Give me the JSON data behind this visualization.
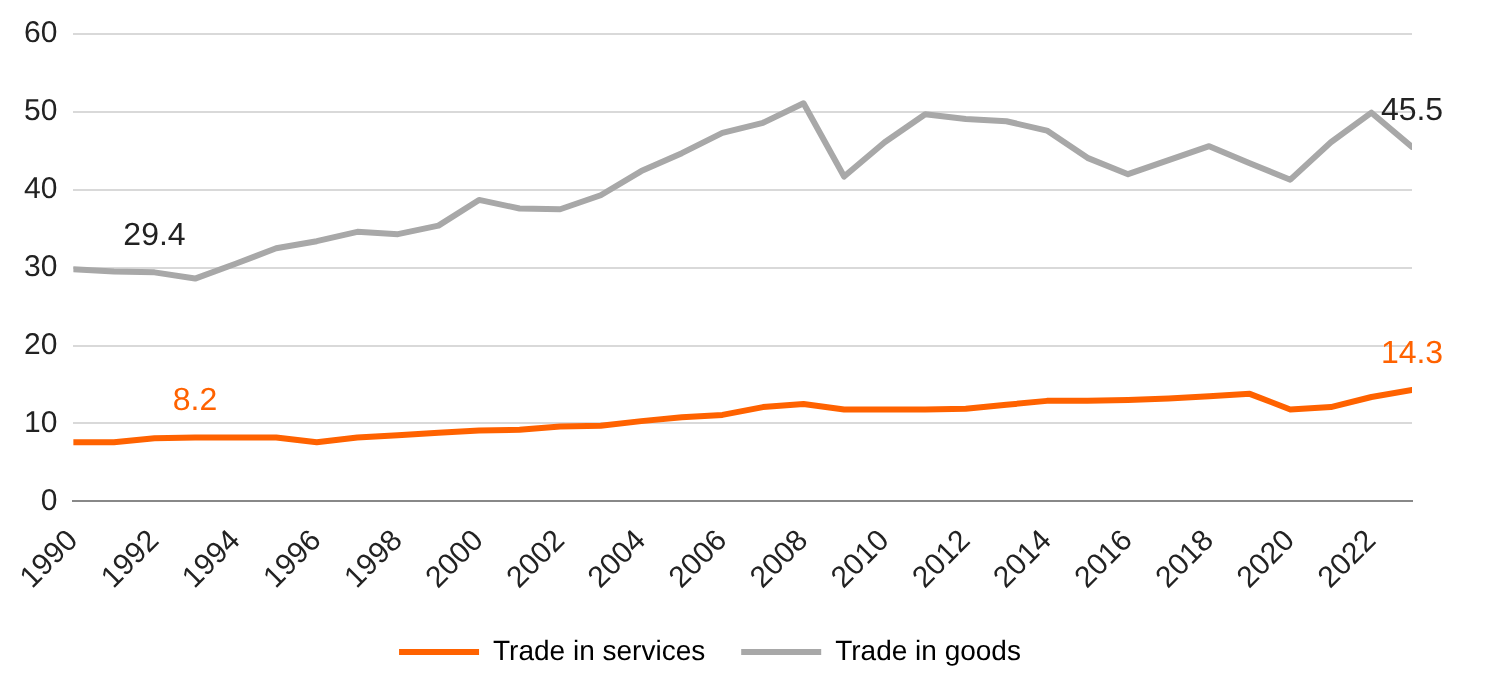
{
  "chart_data": {
    "type": "line",
    "x": [
      1990,
      1991,
      1992,
      1993,
      1994,
      1995,
      1996,
      1997,
      1998,
      1999,
      2000,
      2001,
      2002,
      2003,
      2004,
      2005,
      2006,
      2007,
      2008,
      2009,
      2010,
      2011,
      2012,
      2013,
      2014,
      2015,
      2016,
      2017,
      2018,
      2019,
      2020,
      2021,
      2022,
      2023
    ],
    "series": [
      {
        "name": "Trade in services",
        "color": "#ff6200",
        "values": [
          7.6,
          7.6,
          8.1,
          8.2,
          8.2,
          8.2,
          7.6,
          8.2,
          8.5,
          8.8,
          9.1,
          9.2,
          9.6,
          9.7,
          10.3,
          10.8,
          11.1,
          12.1,
          12.5,
          11.8,
          11.8,
          11.8,
          11.9,
          12.4,
          12.9,
          12.9,
          13.0,
          13.2,
          13.5,
          13.8,
          11.8,
          12.1,
          13.4,
          14.3
        ]
      },
      {
        "name": "Trade in goods",
        "color": "#a8a8a8",
        "values": [
          29.8,
          29.5,
          29.4,
          28.6,
          30.5,
          32.5,
          33.4,
          34.6,
          34.3,
          35.4,
          38.7,
          37.6,
          37.5,
          39.3,
          42.4,
          44.7,
          47.3,
          48.6,
          51.1,
          41.7,
          46.1,
          49.7,
          49.1,
          48.8,
          47.6,
          44.1,
          42.0,
          43.8,
          45.6,
          43.4,
          41.3,
          46.1,
          49.9,
          45.5
        ]
      }
    ],
    "xlim": [
      1990,
      2023
    ],
    "xticks": [
      1990,
      1992,
      1994,
      1996,
      1998,
      2000,
      2002,
      2004,
      2006,
      2008,
      2010,
      2012,
      2014,
      2016,
      2018,
      2020,
      2022
    ],
    "ylim": [
      0,
      60
    ],
    "yticks": [
      0,
      10,
      20,
      30,
      40,
      50,
      60
    ],
    "grid": "y",
    "legend": "bottom",
    "marker": "none",
    "line_style": "solid",
    "annotations": [
      {
        "text": "8.2",
        "x": 1993,
        "y": 8.2
      },
      {
        "text": "29.4",
        "x": 1992,
        "y": 29.4
      },
      {
        "text": "14.3",
        "x": 2023,
        "y": 14.3
      },
      {
        "text": "45.5",
        "x": 2023,
        "y": 45.5
      }
    ]
  }
}
